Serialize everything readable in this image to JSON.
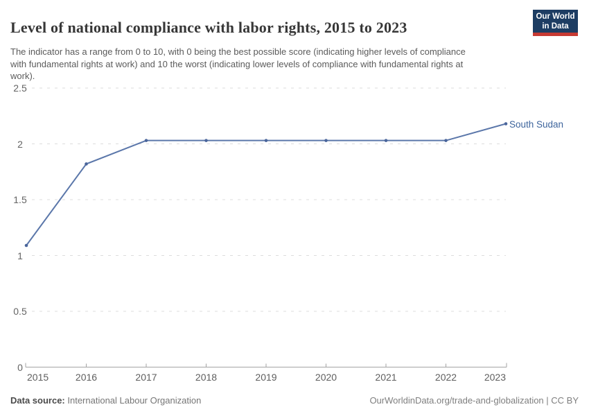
{
  "chart_data": {
    "type": "line",
    "title": "Level of national compliance with labor rights, 2015 to 2023",
    "subtitle": "The indicator has a range from 0 to 10, with 0 being the best possible score (indicating higher levels of compliance with fundamental rights at work) and 10 the worst (indicating lower levels of compliance with fundamental rights at work).",
    "x": [
      2015,
      2016,
      2017,
      2018,
      2019,
      2020,
      2021,
      2022,
      2023
    ],
    "series": [
      {
        "name": "South Sudan",
        "values": [
          1.09,
          1.82,
          2.03,
          2.03,
          2.03,
          2.03,
          2.03,
          2.03,
          2.18
        ],
        "color": "#5b77aa",
        "marker_color": "#4a659b",
        "label_color": "#3d649c"
      }
    ],
    "xlabel": "",
    "ylabel": "",
    "ylim": [
      0,
      2.5
    ],
    "yticks": [
      0,
      0.5,
      1,
      1.5,
      2,
      2.5
    ],
    "grid": "horizontal-dashed",
    "legend": "end-of-line-label"
  },
  "logo": {
    "line1": "Our World",
    "line2": "in Data"
  },
  "footer": {
    "source_label": "Data source:",
    "source_value": " International Labour Organization",
    "credit": "OurWorldinData.org/trade-and-globalization | CC BY"
  },
  "colors": {
    "gridline": "#dcdcdc",
    "axis": "#a3a3a3",
    "logo_bg": "#1d3d63",
    "logo_accent": "#c73a33"
  }
}
